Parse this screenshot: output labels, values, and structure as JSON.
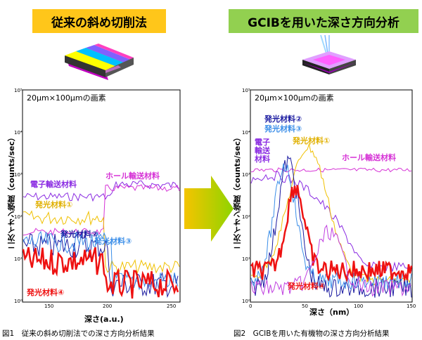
{
  "titles": {
    "left": "従来の斜め切削法",
    "right": "GCIBを用いた深さ方向分析"
  },
  "charts": {
    "left": {
      "pixel_note": "20μm×100μmの画素",
      "ylabel": "二次イオン強度（counts/sec）",
      "xlabel": "深さ(a.u.)",
      "xticks": [
        "150",
        "200",
        "250"
      ],
      "yticks": [
        "10⁰",
        "10¹",
        "10²",
        "10³",
        "10⁴",
        "10⁵"
      ],
      "labels": {
        "electron": "電子輸送材料",
        "hole": "ホール輸送材料",
        "emit1": "発光材料①",
        "emit2": "発光材料②",
        "emit3": "発光材料③",
        "emit4": "発光材料④"
      }
    },
    "right": {
      "pixel_note": "20μm×100μmの画素",
      "ylabel": "二次イオン強度（counts/sec）",
      "xlabel": "深さ（nm）",
      "xticks": [
        "0",
        "50",
        "100",
        "150"
      ],
      "yticks": [
        "10⁰",
        "10¹",
        "10²",
        "10³",
        "10⁴",
        "10⁵"
      ],
      "labels": {
        "electron": "電子\n輸送\n材料",
        "hole": "ホール輸送材料",
        "emit1": "発光材料①",
        "emit2": "発光材料②",
        "emit3": "発光材料③",
        "emit4": "発光材料④"
      }
    }
  },
  "colors": {
    "electron": "#8a2be2",
    "hole": "#d633d6",
    "emit1": "#f0c000",
    "emit2": "#1a1aa0",
    "emit3": "#3b8ee8",
    "emit4": "#ee1111",
    "arrow": "#f5c400"
  },
  "captions": {
    "left": "図1　従来の斜め切削法での深さ方向分析結果",
    "right": "図2　GCIBを用いた有機物の深さ方向分析結果"
  }
}
